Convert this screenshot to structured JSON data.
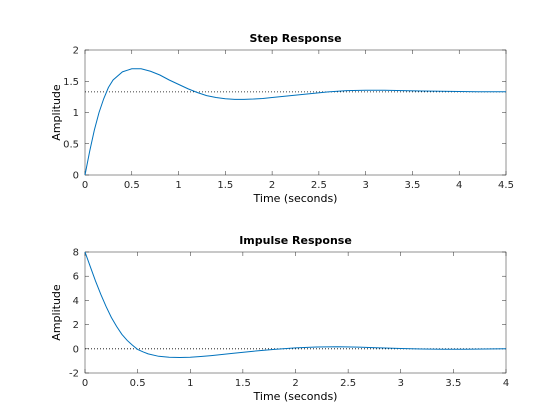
{
  "chart_data": [
    {
      "type": "line",
      "title": "Step Response",
      "xlabel": "Time (seconds)",
      "ylabel": "Amplitude",
      "xlim": [
        0,
        4.5
      ],
      "ylim": [
        0,
        2
      ],
      "xticks": [
        "0",
        "0.5",
        "1",
        "1.5",
        "2",
        "2.5",
        "3",
        "3.5",
        "4",
        "4.5"
      ],
      "yticks": [
        "0",
        "0.5",
        "1",
        "1.5",
        "2"
      ],
      "reference_line": 1.33,
      "series": [
        {
          "color": "#0072BD",
          "x": [
            0,
            0.05,
            0.1,
            0.15,
            0.2,
            0.25,
            0.3,
            0.4,
            0.5,
            0.6,
            0.7,
            0.8,
            0.9,
            1.0,
            1.1,
            1.2,
            1.3,
            1.4,
            1.5,
            1.6,
            1.7,
            1.8,
            1.9,
            2.0,
            2.2,
            2.4,
            2.6,
            2.8,
            3.0,
            3.2,
            3.4,
            3.6,
            3.8,
            4.0,
            4.2,
            4.5
          ],
          "y": [
            0,
            0.38,
            0.72,
            1.0,
            1.22,
            1.4,
            1.52,
            1.65,
            1.7,
            1.7,
            1.66,
            1.6,
            1.52,
            1.45,
            1.38,
            1.32,
            1.27,
            1.24,
            1.22,
            1.21,
            1.21,
            1.215,
            1.225,
            1.24,
            1.27,
            1.3,
            1.33,
            1.35,
            1.355,
            1.355,
            1.35,
            1.345,
            1.34,
            1.335,
            1.333,
            1.333
          ]
        }
      ]
    },
    {
      "type": "line",
      "title": "Impulse Response",
      "xlabel": "Time (seconds)",
      "ylabel": "Amplitude",
      "xlim": [
        0,
        4
      ],
      "ylim": [
        -2,
        8
      ],
      "xticks": [
        "0",
        "0.5",
        "1",
        "1.5",
        "2",
        "2.5",
        "3",
        "3.5",
        "4"
      ],
      "yticks": [
        "-2",
        "0",
        "2",
        "4",
        "6",
        "8"
      ],
      "reference_line": 0,
      "series": [
        {
          "color": "#0072BD",
          "x": [
            0,
            0.05,
            0.1,
            0.15,
            0.2,
            0.25,
            0.3,
            0.35,
            0.4,
            0.45,
            0.5,
            0.55,
            0.6,
            0.7,
            0.8,
            0.9,
            1.0,
            1.1,
            1.2,
            1.4,
            1.6,
            1.8,
            2.0,
            2.2,
            2.4,
            2.6,
            2.8,
            3.0,
            3.2,
            3.4,
            3.6,
            3.8,
            4.0
          ],
          "y": [
            8,
            6.8,
            5.6,
            4.5,
            3.5,
            2.6,
            1.85,
            1.2,
            0.7,
            0.3,
            -0.05,
            -0.25,
            -0.42,
            -0.62,
            -0.7,
            -0.72,
            -0.7,
            -0.64,
            -0.56,
            -0.38,
            -0.2,
            -0.05,
            0.08,
            0.15,
            0.17,
            0.14,
            0.08,
            0.03,
            -0.02,
            -0.04,
            -0.04,
            -0.02,
            0.0
          ]
        }
      ]
    }
  ]
}
